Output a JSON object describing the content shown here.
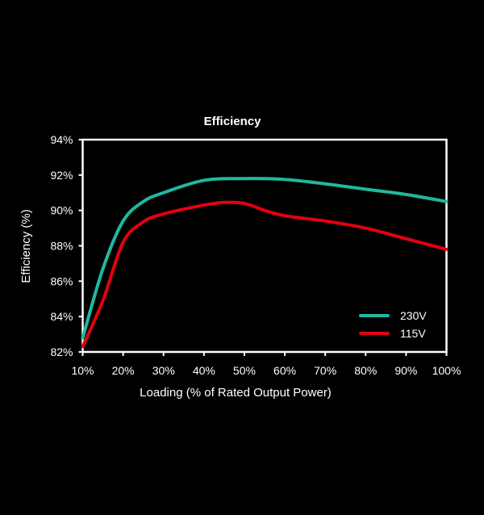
{
  "chart_data": {
    "type": "line",
    "title": "Efficiency",
    "xlabel": "Loading (% of Rated Output Power)",
    "ylabel": "Efficiency (%)",
    "xlim": [
      10,
      100
    ],
    "ylim": [
      82,
      94
    ],
    "x_ticks": [
      "10%",
      "20%",
      "30%",
      "40%",
      "50%",
      "60%",
      "70%",
      "80%",
      "90%",
      "100%"
    ],
    "y_ticks": [
      "82%",
      "84%",
      "86%",
      "88%",
      "90%",
      "92%",
      "94%"
    ],
    "grid": false,
    "legend_position": "bottom-right",
    "series": [
      {
        "name": "230V",
        "color": "#1fb8a0",
        "x": [
          10,
          15,
          20,
          25,
          30,
          40,
          50,
          60,
          70,
          80,
          90,
          100
        ],
        "y": [
          82.8,
          86.7,
          89.4,
          90.5,
          91.0,
          91.7,
          91.8,
          91.75,
          91.5,
          91.2,
          90.9,
          90.5
        ]
      },
      {
        "name": "115V",
        "color": "#e3000f",
        "x": [
          10,
          15,
          20,
          25,
          30,
          40,
          45,
          50,
          55,
          60,
          70,
          80,
          90,
          100
        ],
        "y": [
          82.3,
          84.9,
          88.2,
          89.35,
          89.8,
          90.3,
          90.45,
          90.4,
          90.0,
          89.7,
          89.4,
          89.0,
          88.4,
          87.8
        ]
      }
    ]
  }
}
